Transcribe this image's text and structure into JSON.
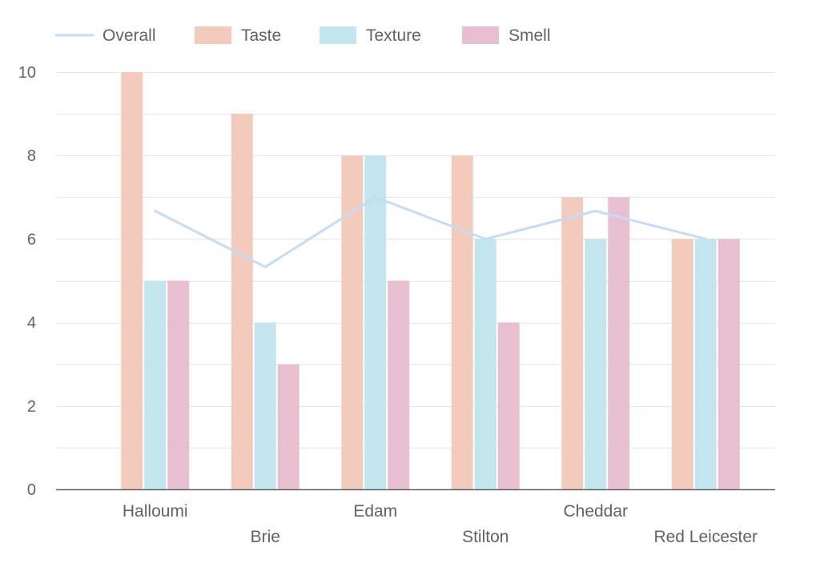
{
  "chart_data": {
    "type": "bar",
    "categories": [
      "Halloumi",
      "Brie",
      "Edam",
      "Stilton",
      "Cheddar",
      "Red Leicester"
    ],
    "series": [
      {
        "name": "Taste",
        "kind": "bar",
        "color": "#f2cbbd",
        "values": [
          10,
          9,
          8,
          8,
          7,
          6
        ]
      },
      {
        "name": "Texture",
        "kind": "bar",
        "color": "#c3e6ee",
        "values": [
          5,
          4,
          8,
          6,
          6,
          6
        ]
      },
      {
        "name": "Smell",
        "kind": "bar",
        "color": "#e8bfd0",
        "values": [
          5,
          3,
          5,
          4,
          7,
          6
        ]
      },
      {
        "name": "Overall",
        "kind": "line",
        "color": "#c6dbf5",
        "values": [
          6.67,
          5.33,
          7,
          6,
          6.67,
          6
        ]
      }
    ],
    "legend_order": [
      "Overall",
      "Taste",
      "Texture",
      "Smell"
    ],
    "ylim": [
      0,
      10
    ],
    "yticks": [
      "0",
      "2",
      "4",
      "6",
      "8",
      "10"
    ],
    "grid": true,
    "legend_position": "top-left"
  }
}
